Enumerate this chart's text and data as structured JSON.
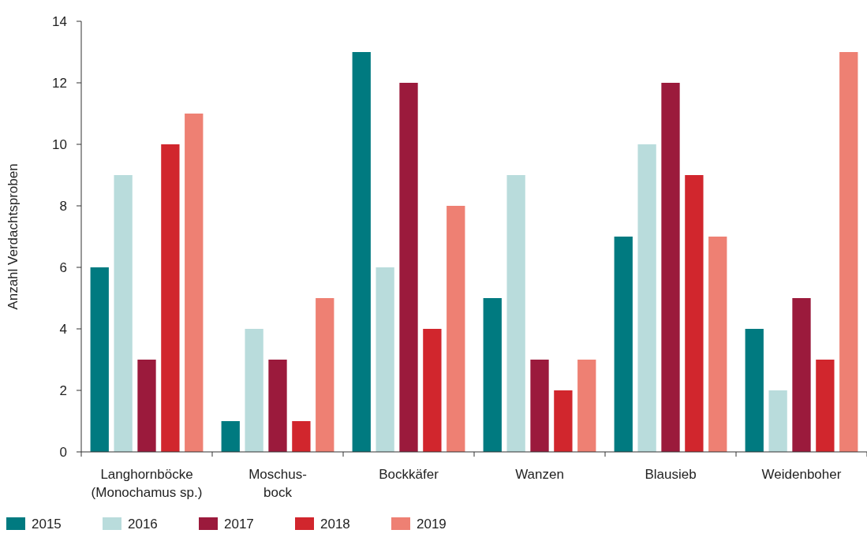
{
  "chart_data": {
    "type": "bar",
    "ylabel": "Anzahl Verdachtsproben",
    "categories": [
      "Langhornböcke\n(Monochamus sp.)",
      "Moschus-\nbock",
      "Bockkäfer",
      "Wanzen",
      "Blausieb",
      "Weidenboher"
    ],
    "series": [
      {
        "name": "2015",
        "color": "#007a80",
        "values": [
          6,
          1,
          13,
          5,
          7,
          4
        ]
      },
      {
        "name": "2016",
        "color": "#b9dcdc",
        "values": [
          9,
          4,
          6,
          9,
          10,
          2
        ]
      },
      {
        "name": "2017",
        "color": "#9b1a3c",
        "values": [
          3,
          3,
          12,
          3,
          12,
          5
        ]
      },
      {
        "name": "2018",
        "color": "#d1262d",
        "values": [
          10,
          1,
          4,
          2,
          9,
          3
        ]
      },
      {
        "name": "2019",
        "color": "#ee8073",
        "values": [
          11,
          5,
          8,
          3,
          7,
          13
        ]
      }
    ],
    "ylim": [
      0,
      14
    ],
    "yticks": [
      0,
      2,
      4,
      6,
      8,
      10,
      12,
      14
    ],
    "grid": false,
    "legend": "bottom left"
  }
}
